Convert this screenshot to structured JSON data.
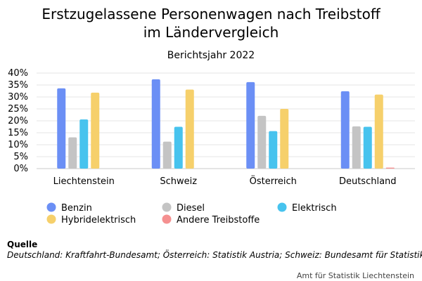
{
  "chart_data": {
    "type": "bar",
    "title_lines": [
      "Erstzugelassene Personenwagen nach Treibstoff",
      "im Ländervergleich"
    ],
    "subtitle": "Berichtsjahr 2022",
    "categories": [
      "Liechtenstein",
      "Schweiz",
      "Österreich",
      "Deutschland"
    ],
    "y_ticks": [
      "0%",
      "5%",
      "10%",
      "15%",
      "20%",
      "25%",
      "30%",
      "35%",
      "40%"
    ],
    "ylim": [
      0,
      40
    ],
    "y_unit": "%",
    "grid": true,
    "legend_position": "bottom",
    "series": [
      {
        "name": "Benzin",
        "color": "#6b8ff5",
        "values": [
          33.6,
          37.4,
          36.2,
          32.4
        ]
      },
      {
        "name": "Diesel",
        "color": "#c4c4c4",
        "values": [
          13.1,
          11.3,
          22.1,
          17.7
        ]
      },
      {
        "name": "Elektrisch",
        "color": "#47c3ee",
        "values": [
          20.6,
          17.5,
          15.7,
          17.5
        ]
      },
      {
        "name": "Hybridelektrisch",
        "color": "#f6d06b",
        "values": [
          31.8,
          33.1,
          25.0,
          31.0
        ]
      },
      {
        "name": "Andere Treibstoffe",
        "color": "#f59090",
        "values": [
          0,
          0,
          0,
          0.4
        ]
      }
    ]
  },
  "source": {
    "heading": "Quelle",
    "text": "Deutschland: Kraftfahrt-Bundesamt; Österreich: Statistik Austria; Schweiz: Bundesamt für Statistik;"
  },
  "credit": "Amt für Statistik Liechtenstein"
}
